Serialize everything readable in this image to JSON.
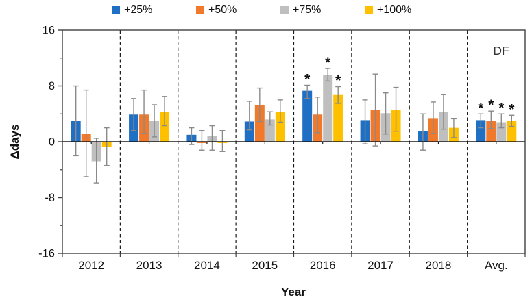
{
  "chart_data": {
    "type": "bar",
    "title": "",
    "panel_label": "DF",
    "xlabel": "Year",
    "ylabel": "Δdays",
    "ylim": [
      -16,
      16
    ],
    "yticks_major": [
      16,
      8,
      0,
      -8,
      -16
    ],
    "yticks_minor": [
      12,
      4,
      -4,
      -12
    ],
    "legend_position": "top",
    "grid": "dashed vertical separators between year groups, error bars on each bar",
    "sig_marker": "*",
    "categories": [
      "2012",
      "2013",
      "2014",
      "2015",
      "2016",
      "2017",
      "2018",
      "Avg."
    ],
    "series": [
      {
        "name": "+25%",
        "color": "#1F6FC5",
        "values": [
          3.0,
          3.9,
          1.0,
          2.9,
          7.3,
          3.1,
          1.5,
          3.1
        ],
        "err_high": [
          8.0,
          6.2,
          2.0,
          5.8,
          8.1,
          6.0,
          4.0,
          4.0
        ],
        "err_low": [
          -2.0,
          1.6,
          -0.4,
          1.7,
          6.2,
          -0.3,
          -1.2,
          2.0
        ],
        "sig": [
          false,
          false,
          false,
          false,
          true,
          false,
          false,
          true
        ]
      },
      {
        "name": "+50%",
        "color": "#F0792B",
        "values": [
          1.1,
          3.9,
          -0.2,
          5.3,
          3.9,
          4.6,
          3.3,
          3.0
        ],
        "err_high": [
          7.4,
          7.4,
          1.6,
          7.7,
          6.4,
          9.7,
          5.7,
          4.4
        ],
        "err_low": [
          -5.0,
          1.2,
          -1.2,
          2.9,
          1.3,
          -0.6,
          1.2,
          1.9
        ],
        "sig": [
          false,
          false,
          false,
          false,
          false,
          false,
          false,
          true
        ]
      },
      {
        "name": "+75%",
        "color": "#BFBFBF",
        "values": [
          -2.8,
          3.0,
          0.8,
          3.2,
          9.6,
          4.1,
          4.3,
          2.8
        ],
        "err_high": [
          0.5,
          5.3,
          2.3,
          4.3,
          10.5,
          7.0,
          6.8,
          4.0
        ],
        "err_low": [
          -5.9,
          0.7,
          -1.2,
          2.4,
          8.7,
          1.1,
          1.8,
          2.0
        ],
        "sig": [
          false,
          false,
          false,
          false,
          true,
          false,
          false,
          true
        ]
      },
      {
        "name": "+100%",
        "color": "#FFC000",
        "values": [
          -0.7,
          4.3,
          -0.2,
          4.3,
          6.8,
          4.6,
          2.0,
          3.0
        ],
        "err_high": [
          2.0,
          6.5,
          1.6,
          6.0,
          7.9,
          7.8,
          3.3,
          3.8
        ],
        "err_low": [
          -3.4,
          2.3,
          -1.4,
          2.8,
          5.5,
          1.5,
          0.6,
          2.2
        ],
        "sig": [
          false,
          false,
          false,
          false,
          true,
          false,
          false,
          true
        ]
      }
    ],
    "colors": {
      "frame": "#404040",
      "zero_line": "#1a1a1a",
      "separator": "#1a1a1a",
      "error_bar": "#8a8a8a",
      "text": "#111111"
    }
  }
}
